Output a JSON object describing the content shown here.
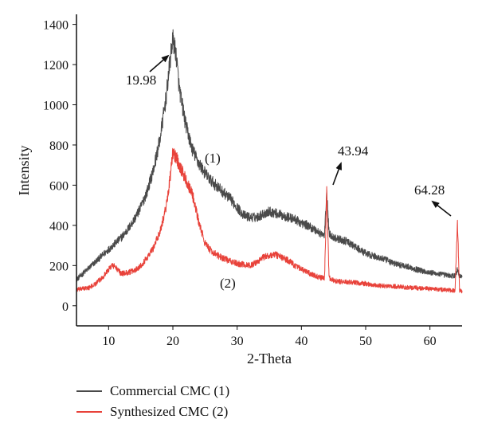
{
  "chart_data": {
    "type": "line",
    "xlabel": "2-Theta",
    "ylabel": "Intensity",
    "xlim": [
      5,
      65
    ],
    "ylim": [
      -100,
      1450
    ],
    "x_ticks": [
      10,
      20,
      30,
      40,
      50,
      60
    ],
    "y_ticks": [
      0,
      200,
      400,
      600,
      800,
      1000,
      1200,
      1400
    ],
    "grid": false,
    "legend_position": "bottom-left",
    "series": [
      {
        "name": "Commercial CMC (1)",
        "color": "#4a4a4a",
        "x": [
          5,
          6,
          7,
          8,
          9,
          10,
          11,
          12,
          13,
          14,
          15,
          16,
          17,
          18,
          19,
          19.5,
          19.98,
          20.5,
          21,
          22,
          23,
          24,
          25,
          26,
          27,
          28,
          29,
          30,
          31,
          32,
          33,
          34,
          35,
          36,
          37,
          38,
          39,
          40,
          41,
          42,
          43,
          43.6,
          43.94,
          44.3,
          45,
          46,
          47,
          48,
          49,
          50,
          51,
          52,
          53,
          54,
          55,
          56,
          57,
          58,
          59,
          60,
          61,
          62,
          63,
          63.9,
          64.28,
          64.6,
          65
        ],
        "values": [
          130,
          160,
          190,
          220,
          250,
          280,
          310,
          340,
          380,
          430,
          490,
          570,
          680,
          830,
          1050,
          1200,
          1330,
          1250,
          1080,
          900,
          780,
          710,
          660,
          620,
          590,
          560,
          530,
          490,
          450,
          440,
          440,
          455,
          470,
          460,
          450,
          440,
          430,
          410,
          400,
          380,
          360,
          350,
          570,
          360,
          340,
          330,
          320,
          300,
          280,
          260,
          250,
          240,
          230,
          215,
          205,
          200,
          190,
          180,
          172,
          165,
          160,
          155,
          150,
          148,
          180,
          150,
          145
        ]
      },
      {
        "name": "Synthesized CMC (2)",
        "color": "#e8423a",
        "x": [
          5,
          6,
          7,
          8,
          9,
          10,
          10.5,
          11,
          11.5,
          12,
          13,
          14,
          15,
          16,
          17,
          18,
          19,
          19.5,
          20,
          20.5,
          21,
          22,
          23,
          24,
          25,
          26,
          27,
          28,
          29,
          30,
          31,
          32,
          33,
          34,
          35,
          36,
          37,
          38,
          39,
          40,
          41,
          42,
          43,
          43.6,
          43.94,
          44.3,
          45,
          46,
          47,
          48,
          49,
          50,
          51,
          52,
          53,
          54,
          55,
          56,
          57,
          58,
          59,
          60,
          61,
          62,
          63,
          63.9,
          64.28,
          64.6,
          65
        ],
        "values": [
          80,
          85,
          90,
          110,
          140,
          180,
          200,
          195,
          175,
          160,
          165,
          175,
          200,
          240,
          290,
          370,
          500,
          620,
          760,
          740,
          700,
          630,
          560,
          420,
          310,
          270,
          250,
          235,
          220,
          210,
          205,
          200,
          215,
          240,
          250,
          255,
          240,
          225,
          200,
          180,
          165,
          150,
          140,
          135,
          570,
          140,
          125,
          120,
          118,
          115,
          112,
          110,
          105,
          100,
          98,
          96,
          95,
          92,
          90,
          88,
          86,
          84,
          82,
          80,
          78,
          75,
          420,
          75,
          72
        ]
      }
    ],
    "annotations": [
      {
        "text": "19.98"
      },
      {
        "text": "43.94"
      },
      {
        "text": "64.28"
      },
      {
        "text": "(1)"
      },
      {
        "text": "(2)"
      }
    ]
  }
}
